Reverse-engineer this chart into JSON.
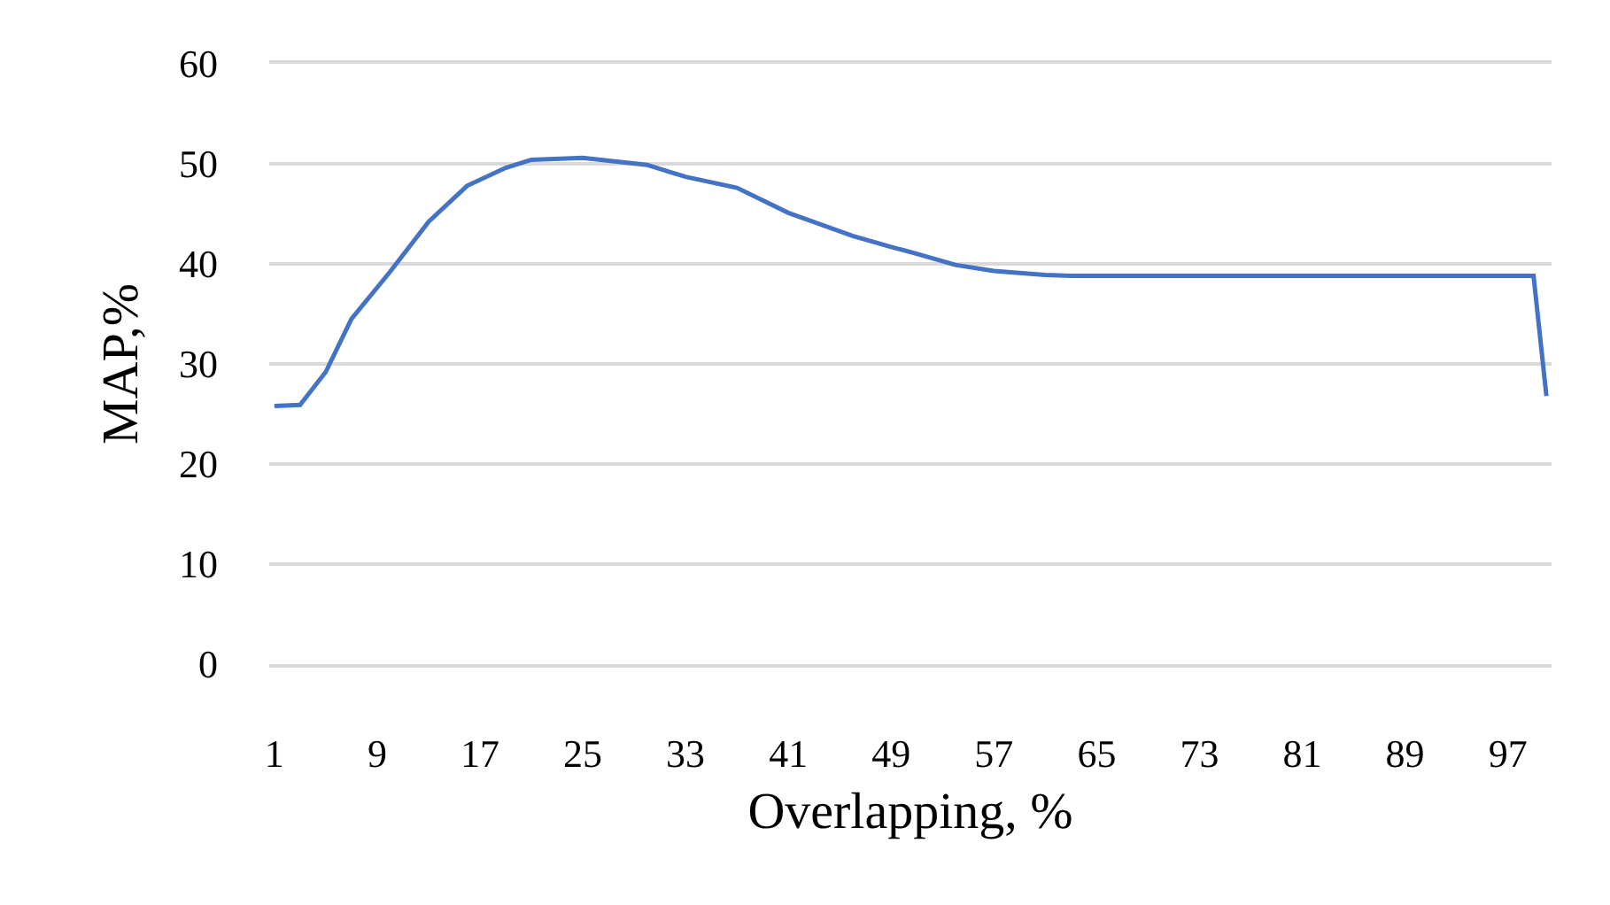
{
  "chart_data": {
    "type": "line",
    "xlabel": "Overlapping, %",
    "ylabel": "MAP,%",
    "x": [
      1,
      3,
      5,
      7,
      10,
      13,
      16,
      19,
      21,
      25,
      30,
      33,
      37,
      41,
      46,
      49,
      51,
      54,
      57,
      61,
      63,
      70,
      80,
      90,
      99,
      100
    ],
    "series": [
      {
        "color": "#4472c4",
        "values": [
          25.8,
          25.9,
          29.2,
          34.5,
          39.2,
          44.2,
          47.8,
          49.6,
          50.4,
          50.6,
          49.9,
          48.7,
          47.6,
          45.1,
          42.8,
          41.7,
          41.0,
          39.9,
          39.3,
          38.9,
          38.8,
          38.8,
          38.8,
          38.8,
          38.8,
          26.8
        ]
      }
    ],
    "xlim": [
      0.6,
      100.4
    ],
    "xticks": [
      1,
      9,
      17,
      25,
      33,
      41,
      49,
      57,
      65,
      73,
      81,
      89,
      97
    ],
    "ylim": [
      0,
      60
    ],
    "yticks": [
      0,
      10,
      20,
      30,
      40,
      50,
      60
    ],
    "grid": "y",
    "marker": "none",
    "line_style": "solid"
  }
}
